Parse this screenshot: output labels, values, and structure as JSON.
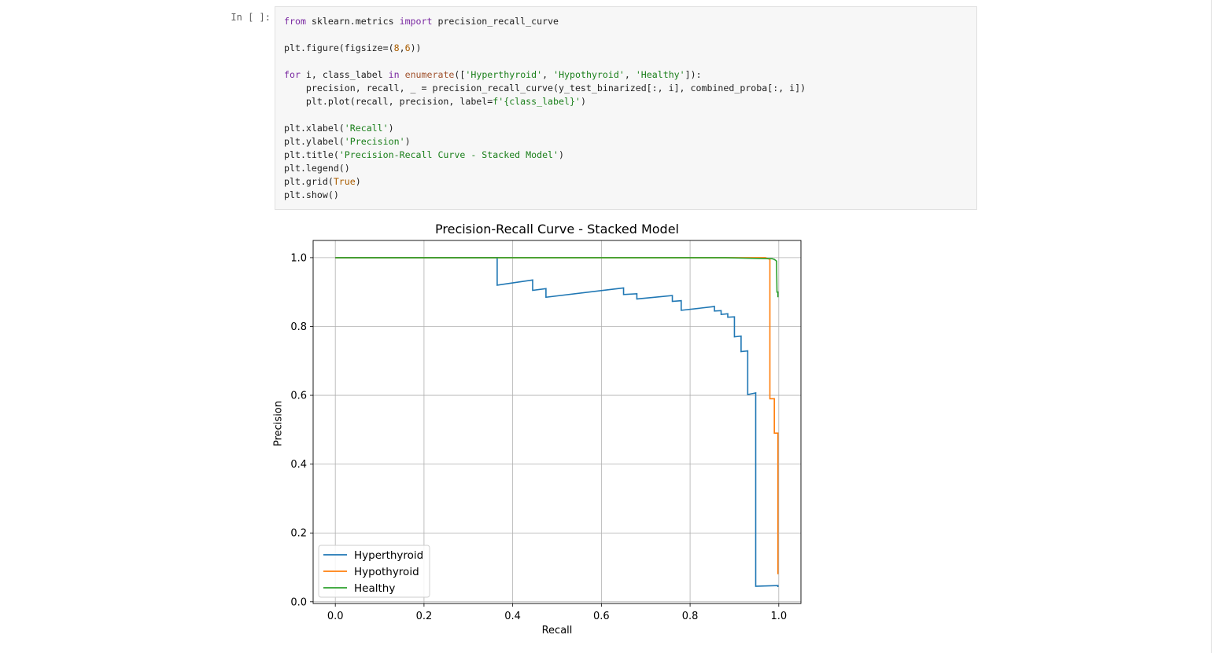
{
  "cell": {
    "prompt": "In [ ]:",
    "code_lines": [
      [
        {
          "t": "kw",
          "v": "from"
        },
        {
          "t": "",
          "v": " sklearn.metrics "
        },
        {
          "t": "kw",
          "v": "import"
        },
        {
          "t": "",
          "v": " precision_recall_curve"
        }
      ],
      [],
      [
        {
          "t": "",
          "v": "plt.figure(figsize=("
        },
        {
          "t": "nm",
          "v": "8"
        },
        {
          "t": "",
          "v": ","
        },
        {
          "t": "nm",
          "v": "6"
        },
        {
          "t": "",
          "v": "))"
        }
      ],
      [],
      [
        {
          "t": "kw",
          "v": "for"
        },
        {
          "t": "",
          "v": " i, class_label "
        },
        {
          "t": "kw",
          "v": "in"
        },
        {
          "t": "",
          "v": " "
        },
        {
          "t": "bi",
          "v": "enumerate"
        },
        {
          "t": "",
          "v": "(["
        },
        {
          "t": "st",
          "v": "'Hyperthyroid'"
        },
        {
          "t": "",
          "v": ", "
        },
        {
          "t": "st",
          "v": "'Hypothyroid'"
        },
        {
          "t": "",
          "v": ", "
        },
        {
          "t": "st",
          "v": "'Healthy'"
        },
        {
          "t": "",
          "v": "]):"
        }
      ],
      [
        {
          "t": "",
          "v": "    precision, recall, _ = precision_recall_curve(y_test_binarized[:, i], combined_proba[:, i])"
        }
      ],
      [
        {
          "t": "",
          "v": "    plt.plot(recall, precision, label="
        },
        {
          "t": "st",
          "v": "f'{class_label}'"
        },
        {
          "t": "",
          "v": ")"
        }
      ],
      [],
      [
        {
          "t": "",
          "v": "plt.xlabel("
        },
        {
          "t": "st",
          "v": "'Recall'"
        },
        {
          "t": "",
          "v": ")"
        }
      ],
      [
        {
          "t": "",
          "v": "plt.ylabel("
        },
        {
          "t": "st",
          "v": "'Precision'"
        },
        {
          "t": "",
          "v": ")"
        }
      ],
      [
        {
          "t": "",
          "v": "plt.title("
        },
        {
          "t": "st",
          "v": "'Precision-Recall Curve - Stacked Model'"
        },
        {
          "t": "",
          "v": ")"
        }
      ],
      [
        {
          "t": "",
          "v": "plt.legend()"
        }
      ],
      [
        {
          "t": "",
          "v": "plt.grid("
        },
        {
          "t": "nm",
          "v": "True"
        },
        {
          "t": "",
          "v": ")"
        }
      ],
      [
        {
          "t": "",
          "v": "plt.show()"
        }
      ]
    ]
  },
  "chart_data": {
    "type": "line",
    "title": "Precision-Recall Curve - Stacked Model",
    "xlabel": "Recall",
    "ylabel": "Precision",
    "xlim": [
      -0.05,
      1.05
    ],
    "ylim": [
      -0.005,
      1.05
    ],
    "xticks": [
      "0.0",
      "0.2",
      "0.4",
      "0.6",
      "0.8",
      "1.0"
    ],
    "yticks": [
      "0.0",
      "0.2",
      "0.4",
      "0.6",
      "0.8",
      "1.0"
    ],
    "grid": true,
    "legend_position": "lower-left",
    "series": [
      {
        "name": "Hyperthyroid",
        "color": "#1f77b4",
        "points": [
          [
            0,
            1.0
          ],
          [
            0.365,
            1.0
          ],
          [
            0.365,
            0.92
          ],
          [
            0.445,
            0.935
          ],
          [
            0.445,
            0.905
          ],
          [
            0.475,
            0.91
          ],
          [
            0.475,
            0.885
          ],
          [
            0.65,
            0.912
          ],
          [
            0.65,
            0.893
          ],
          [
            0.68,
            0.895
          ],
          [
            0.68,
            0.88
          ],
          [
            0.76,
            0.89
          ],
          [
            0.76,
            0.873
          ],
          [
            0.78,
            0.875
          ],
          [
            0.78,
            0.847
          ],
          [
            0.855,
            0.858
          ],
          [
            0.855,
            0.845
          ],
          [
            0.87,
            0.846
          ],
          [
            0.87,
            0.835
          ],
          [
            0.885,
            0.837
          ],
          [
            0.885,
            0.827
          ],
          [
            0.9,
            0.828
          ],
          [
            0.9,
            0.77
          ],
          [
            0.915,
            0.772
          ],
          [
            0.915,
            0.727
          ],
          [
            0.93,
            0.729
          ],
          [
            0.93,
            0.602
          ],
          [
            0.948,
            0.607
          ],
          [
            0.948,
            0.045
          ],
          [
            0.998,
            0.047
          ],
          [
            0.998,
            0.043
          ]
        ]
      },
      {
        "name": "Hypothyroid",
        "color": "#ff7f0e",
        "points": [
          [
            0,
            1.0
          ],
          [
            0.97,
            1.0
          ],
          [
            0.978,
            0.996
          ],
          [
            0.98,
            0.995
          ],
          [
            0.98,
            0.59
          ],
          [
            0.99,
            0.59
          ],
          [
            0.99,
            0.49
          ],
          [
            0.998,
            0.49
          ],
          [
            0.998,
            0.08
          ]
        ]
      },
      {
        "name": "Healthy",
        "color": "#2ca02c",
        "points": [
          [
            0,
            1.0
          ],
          [
            0.88,
            1.0
          ],
          [
            0.95,
            0.998
          ],
          [
            0.985,
            0.997
          ],
          [
            0.99,
            0.995
          ],
          [
            0.995,
            0.99
          ],
          [
            0.996,
            0.9
          ],
          [
            0.998,
            0.9
          ],
          [
            0.998,
            0.885
          ]
        ]
      }
    ]
  }
}
